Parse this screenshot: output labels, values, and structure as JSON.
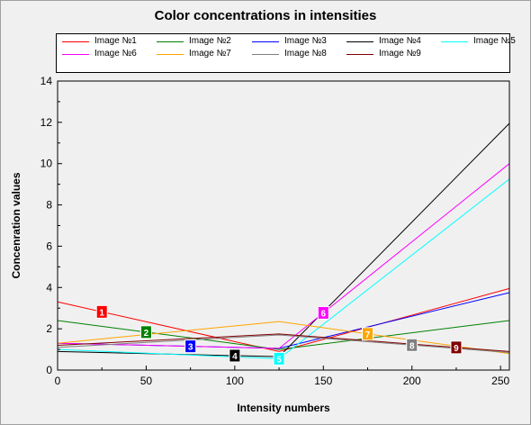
{
  "chart_data": {
    "type": "line",
    "title": "Color concentrations in intensities",
    "xlabel": "Intensity numbers",
    "ylabel": "Concenration values",
    "xlim": [
      0,
      255
    ],
    "ylim": [
      0,
      14
    ],
    "xticks": [
      0,
      50,
      100,
      150,
      200,
      250
    ],
    "yticks": [
      0,
      2,
      4,
      6,
      8,
      10,
      12,
      14
    ],
    "legend_position": "top",
    "series": [
      {
        "name": "Image №1",
        "color": "#ff0000",
        "marker_label": "1",
        "marker_x": 25,
        "points": [
          [
            0,
            3.3
          ],
          [
            125,
            0.9
          ],
          [
            255,
            3.95
          ]
        ]
      },
      {
        "name": "Image №2",
        "color": "#008000",
        "marker_label": "2",
        "marker_x": 50,
        "points": [
          [
            0,
            2.4
          ],
          [
            125,
            1.0
          ],
          [
            255,
            2.4
          ]
        ]
      },
      {
        "name": "Image №3",
        "color": "#0000ff",
        "marker_label": "3",
        "marker_x": 75,
        "points": [
          [
            0,
            1.3
          ],
          [
            125,
            1.05
          ],
          [
            255,
            3.75
          ]
        ]
      },
      {
        "name": "Image №4",
        "color": "#000000",
        "marker_label": "4",
        "marker_x": 100,
        "points": [
          [
            0,
            0.9
          ],
          [
            125,
            0.65
          ],
          [
            255,
            11.95
          ]
        ]
      },
      {
        "name": "Image №5",
        "color": "#00ffff",
        "marker_label": "5",
        "marker_x": 125,
        "points": [
          [
            0,
            1.0
          ],
          [
            125,
            0.55
          ],
          [
            255,
            9.25
          ]
        ]
      },
      {
        "name": "Image №6",
        "color": "#ff00ff",
        "marker_label": "6",
        "marker_x": 150,
        "points": [
          [
            0,
            1.3
          ],
          [
            125,
            1.05
          ],
          [
            255,
            10.0
          ]
        ]
      },
      {
        "name": "Image №7",
        "color": "#ffa500",
        "marker_label": "7",
        "marker_x": 175,
        "points": [
          [
            0,
            1.3
          ],
          [
            125,
            2.35
          ],
          [
            255,
            0.8
          ]
        ]
      },
      {
        "name": "Image №8",
        "color": "#808080",
        "marker_label": "8",
        "marker_x": 200,
        "points": [
          [
            0,
            1.1
          ],
          [
            125,
            1.7
          ],
          [
            255,
            0.85
          ]
        ]
      },
      {
        "name": "Image №9",
        "color": "#800000",
        "marker_label": "9",
        "marker_x": 225,
        "points": [
          [
            0,
            1.2
          ],
          [
            125,
            1.75
          ],
          [
            255,
            0.9
          ]
        ]
      }
    ]
  }
}
